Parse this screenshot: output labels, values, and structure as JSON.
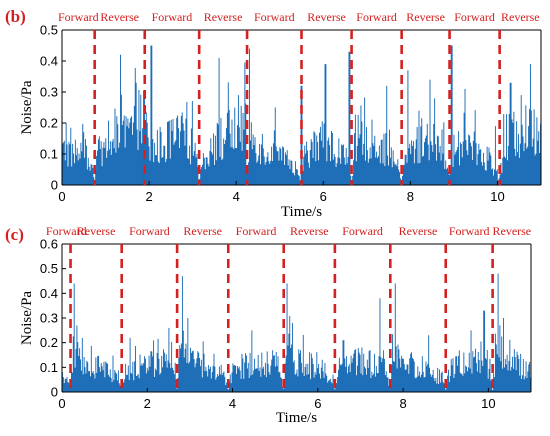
{
  "colors": {
    "signal": "#1f6fb8",
    "marker": "#d42020",
    "axis": "#000000"
  },
  "chart_data": [
    {
      "type": "area",
      "panel_label": "(b)",
      "xlabel": "Time/s",
      "ylabel": "Noise/Pa",
      "xlim": [
        0,
        11
      ],
      "ylim": [
        0,
        0.5
      ],
      "x_ticks": [
        0,
        2,
        4,
        6,
        8,
        10
      ],
      "y_ticks": [
        0,
        0.1,
        0.2,
        0.3,
        0.4,
        0.5
      ],
      "switch_times": [
        0.75,
        1.9,
        3.15,
        4.25,
        5.5,
        6.65,
        7.8,
        8.9,
        10.05
      ],
      "direction_labels": [
        "Forward",
        "Reverse",
        "Forward",
        "Reverse",
        "Forward",
        "Reverse",
        "Forward",
        "Reverse",
        "Forward",
        "Reverse"
      ],
      "series": [
        {
          "name": "",
          "envelope_x": [
            0,
            0.2,
            0.5,
            0.65,
            0.75,
            0.8,
            1.0,
            1.3,
            1.5,
            1.75,
            1.9,
            2.0,
            2.2,
            2.5,
            2.8,
            3.0,
            3.15,
            3.25,
            3.5,
            3.8,
            4.0,
            4.2,
            4.25,
            4.35,
            4.6,
            4.9,
            5.2,
            5.4,
            5.5,
            5.6,
            5.8,
            6.1,
            6.4,
            6.6,
            6.65,
            6.75,
            7.0,
            7.3,
            7.6,
            7.78,
            7.8,
            7.9,
            8.1,
            8.4,
            8.7,
            8.88,
            8.9,
            9.0,
            9.2,
            9.5,
            9.8,
            10.0,
            10.05,
            10.15,
            10.4,
            10.7,
            11.0
          ],
          "envelope_y": [
            0.15,
            0.15,
            0.13,
            0.1,
            0.02,
            0.13,
            0.16,
            0.2,
            0.23,
            0.26,
            0.3,
            0.15,
            0.17,
            0.2,
            0.22,
            0.18,
            0.02,
            0.13,
            0.18,
            0.22,
            0.25,
            0.28,
            0.02,
            0.22,
            0.17,
            0.13,
            0.1,
            0.05,
            0.02,
            0.15,
            0.17,
            0.19,
            0.14,
            0.1,
            0.02,
            0.17,
            0.2,
            0.18,
            0.12,
            0.05,
            0.02,
            0.13,
            0.17,
            0.2,
            0.18,
            0.08,
            0.02,
            0.16,
            0.19,
            0.16,
            0.12,
            0.05,
            0.02,
            0.17,
            0.22,
            0.24,
            0.26
          ],
          "peaks_x": [
            0.1,
            0.5,
            1.35,
            1.7,
            2.05,
            2.5,
            3.6,
            4.05,
            4.3,
            4.9,
            5.5,
            6.05,
            6.6,
            7.45,
            7.95,
            8.45,
            8.95,
            9.25,
            9.95,
            10.3,
            10.55,
            10.75
          ],
          "peaks_y": [
            0.2,
            0.17,
            0.42,
            0.33,
            0.45,
            0.21,
            0.41,
            0.29,
            0.44,
            0.25,
            0.32,
            0.39,
            0.43,
            0.32,
            0.37,
            0.34,
            0.45,
            0.31,
            0.19,
            0.33,
            0.29,
            0.39
          ]
        }
      ]
    },
    {
      "type": "area",
      "panel_label": "(c)",
      "xlabel": "Time/s",
      "ylabel": "Noise/Pa",
      "xlim": [
        0,
        11
      ],
      "ylim": [
        0,
        0.6
      ],
      "x_ticks": [
        0,
        2,
        4,
        6,
        8,
        10
      ],
      "y_ticks": [
        0,
        0.1,
        0.2,
        0.3,
        0.4,
        0.5,
        0.6
      ],
      "switch_times": [
        0.2,
        1.4,
        2.7,
        3.9,
        5.2,
        6.4,
        7.7,
        9.0,
        10.1
      ],
      "direction_labels": [
        "Forward",
        "Reverse",
        "Forward",
        "Reverse",
        "Forward",
        "Reverse",
        "Forward",
        "Reverse",
        "Forward",
        "Reverse"
      ],
      "series": [
        {
          "name": "",
          "envelope_x": [
            0,
            0.15,
            0.2,
            0.25,
            0.5,
            0.9,
            1.2,
            1.35,
            1.4,
            1.5,
            1.9,
            2.3,
            2.6,
            2.7,
            2.78,
            3.0,
            3.4,
            3.8,
            3.9,
            4.0,
            4.4,
            4.8,
            5.1,
            5.2,
            5.28,
            5.5,
            5.9,
            6.3,
            6.4,
            6.5,
            6.9,
            7.3,
            7.6,
            7.7,
            7.78,
            8.0,
            8.5,
            8.9,
            9.0,
            9.1,
            9.5,
            9.9,
            10.05,
            10.1,
            10.18,
            10.5,
            11.0
          ],
          "envelope_y": [
            0.09,
            0.07,
            0.02,
            0.22,
            0.16,
            0.13,
            0.1,
            0.06,
            0.02,
            0.12,
            0.15,
            0.17,
            0.18,
            0.02,
            0.25,
            0.17,
            0.14,
            0.08,
            0.02,
            0.13,
            0.15,
            0.17,
            0.15,
            0.02,
            0.23,
            0.17,
            0.14,
            0.1,
            0.02,
            0.14,
            0.16,
            0.15,
            0.13,
            0.02,
            0.23,
            0.17,
            0.13,
            0.08,
            0.02,
            0.13,
            0.16,
            0.17,
            0.14,
            0.02,
            0.25,
            0.17,
            0.13
          ],
          "peaks_x": [
            0.28,
            0.35,
            1.6,
            2.5,
            2.82,
            2.95,
            4.45,
            5.28,
            5.4,
            6.6,
            7.45,
            7.82,
            8.6,
            9.6,
            9.9,
            10.22,
            10.35
          ],
          "peaks_y": [
            0.44,
            0.27,
            0.22,
            0.26,
            0.47,
            0.3,
            0.25,
            0.44,
            0.28,
            0.21,
            0.38,
            0.44,
            0.23,
            0.25,
            0.33,
            0.48,
            0.3
          ]
        }
      ]
    }
  ]
}
